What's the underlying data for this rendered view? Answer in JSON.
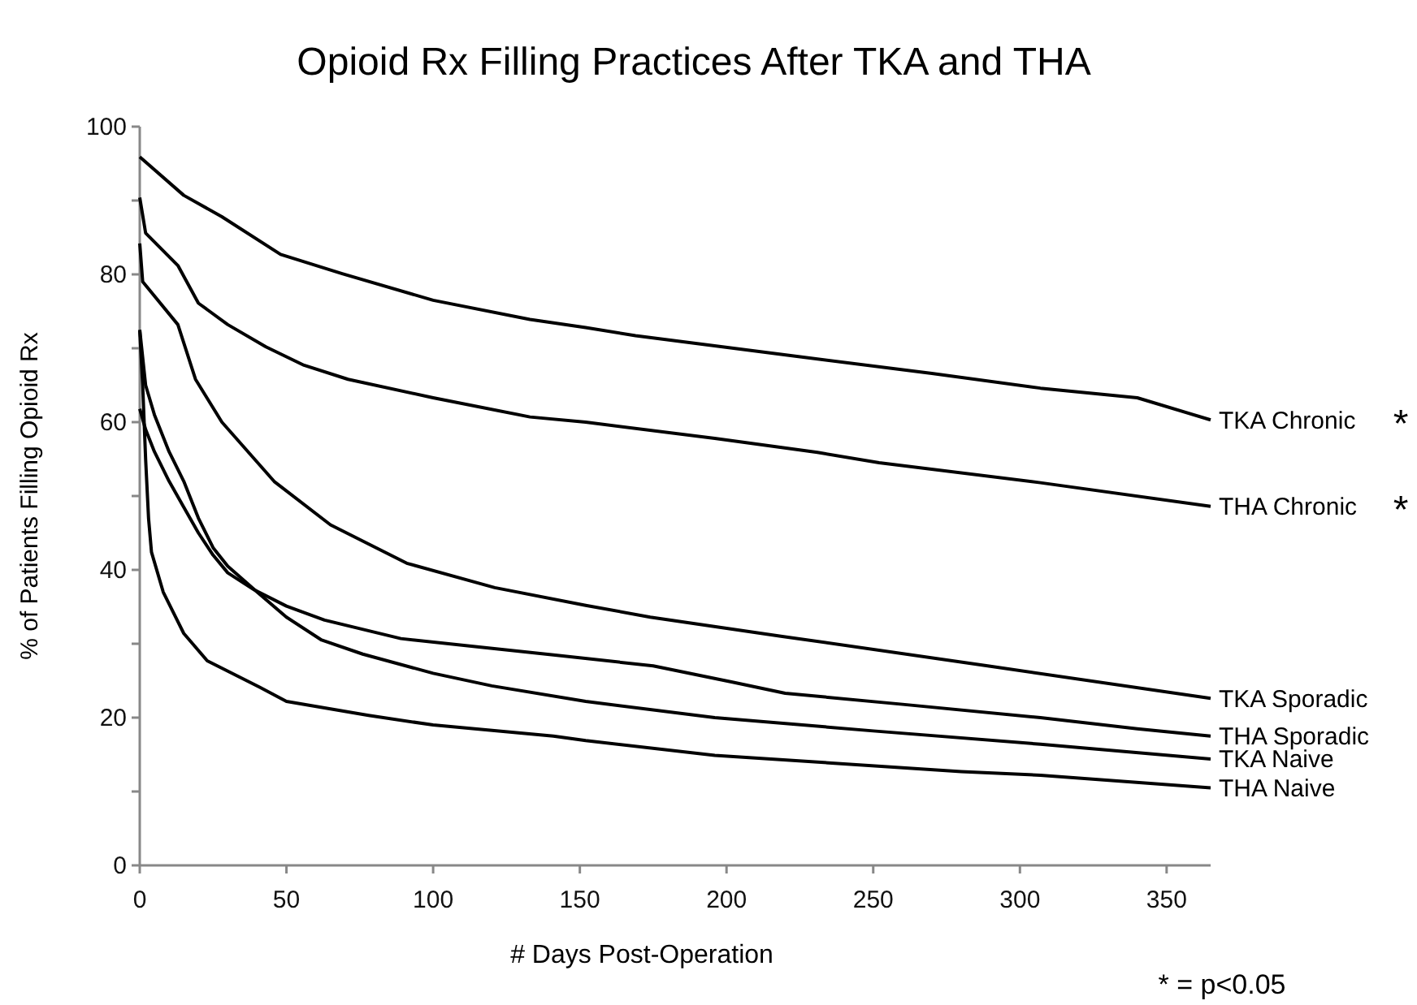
{
  "chart_data": {
    "type": "line",
    "title": "Opioid Rx Filling Practices After TKA and THA",
    "xlabel": "# Days Post-Operation",
    "ylabel": "% of Patients Filling Opioid Rx",
    "xlim": [
      0,
      365
    ],
    "xticks": [
      0,
      50,
      100,
      150,
      200,
      250,
      300,
      350
    ],
    "ylim": [
      0,
      100
    ],
    "yticks": [
      0,
      {
        "value": 10,
        "label": null
      },
      20,
      {
        "value": 30,
        "label": null
      },
      40,
      {
        "value": 50,
        "label": null
      },
      60,
      {
        "value": 70,
        "label": null
      },
      80,
      {
        "value": 90,
        "label": null
      },
      100
    ],
    "grid": false,
    "legend": false,
    "marker": "none",
    "line_style": "solid",
    "series": [
      {
        "name": "TKA Chronic",
        "color": "#000000",
        "x": [
          0,
          15,
          28,
          48,
          69,
          100,
          133,
          152,
          169,
          224,
          270,
          307,
          340,
          365
        ],
        "values": [
          95.9,
          90.7,
          87.8,
          82.7,
          80.1,
          76.5,
          73.9,
          72.8,
          71.7,
          68.9,
          66.6,
          64.6,
          63.3,
          60.3
        ]
      },
      {
        "name": "THA Chronic",
        "color": "#000000",
        "x": [
          0,
          2,
          13,
          20,
          30,
          43,
          56,
          71,
          100,
          133,
          152,
          196,
          231,
          252,
          307,
          365
        ],
        "values": [
          90.4,
          85.6,
          81.2,
          76.1,
          73.2,
          70.2,
          67.7,
          65.8,
          63.3,
          60.7,
          60.0,
          57.8,
          55.9,
          54.5,
          51.8,
          48.6
        ]
      },
      {
        "name": "TKA Sporadic",
        "color": "#000000",
        "x": [
          0,
          1,
          13,
          19,
          28,
          46,
          65,
          91,
          121,
          152,
          174,
          219,
          289,
          365
        ],
        "values": [
          84.2,
          79.0,
          73.2,
          65.8,
          60.0,
          51.9,
          46.1,
          40.9,
          37.6,
          35.2,
          33.6,
          31.0,
          27.0,
          22.6
        ]
      },
      {
        "name": "THA Sporadic",
        "color": "#000000",
        "x": [
          0,
          2,
          5,
          10,
          15,
          20,
          25,
          30,
          39,
          50,
          63,
          89,
          115,
          141,
          175,
          202,
          220,
          260,
          307,
          340,
          365
        ],
        "values": [
          61.8,
          59,
          56,
          52,
          48.5,
          45,
          42,
          39.6,
          37.3,
          35.1,
          33.2,
          30.7,
          29.6,
          28.5,
          27.0,
          24.8,
          23.3,
          21.8,
          20.0,
          18.5,
          17.5
        ]
      },
      {
        "name": "TKA Naive",
        "color": "#000000",
        "x": [
          0,
          2,
          5,
          10,
          15,
          20,
          25,
          30,
          40,
          50,
          62,
          76,
          100,
          120,
          152,
          196,
          250,
          307,
          365
        ],
        "values": [
          72.5,
          65,
          61,
          56,
          52,
          47,
          43,
          40.5,
          37,
          33.6,
          30.5,
          28.6,
          26.0,
          24.3,
          22.2,
          20.0,
          18.2,
          16.4,
          14.4
        ]
      },
      {
        "name": "THA Naive",
        "color": "#000000",
        "x": [
          0,
          1,
          2,
          3,
          4,
          8,
          15,
          23,
          41,
          50,
          78,
          100,
          141,
          152,
          196,
          280,
          307,
          365
        ],
        "values": [
          72.4,
          65,
          55,
          47,
          42.4,
          37,
          31.4,
          27.7,
          24.1,
          22.2,
          20.3,
          19.0,
          17.5,
          16.9,
          14.9,
          12.7,
          12.2,
          10.5
        ]
      }
    ],
    "annotations": [
      "*",
      "*",
      "* = p<0.05"
    ]
  }
}
